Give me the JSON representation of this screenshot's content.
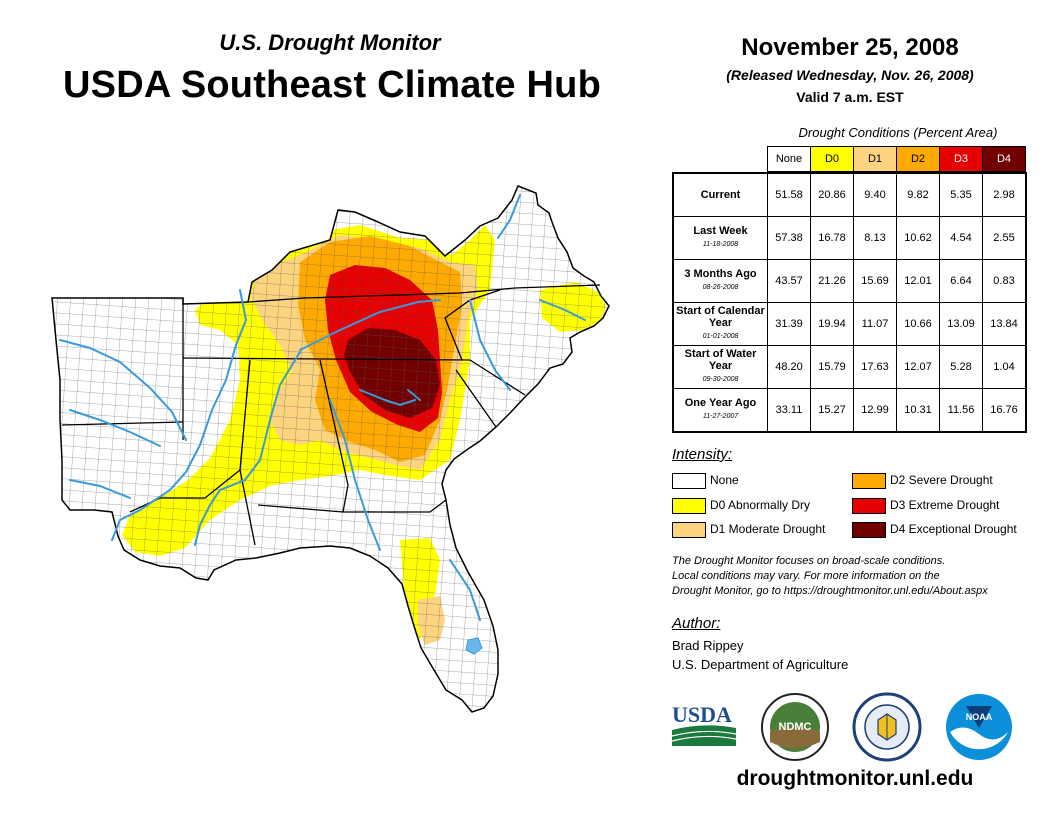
{
  "header": {
    "subtitle": "U.S. Drought Monitor",
    "title": "USDA Southeast Climate Hub",
    "date": "November 25, 2008",
    "released": "(Released Wednesday, Nov. 26, 2008)",
    "valid": "Valid 7 a.m. EST"
  },
  "table": {
    "caption": "Drought Conditions (Percent Area)",
    "columns": [
      "None",
      "D0",
      "D1",
      "D2",
      "D3",
      "D4"
    ],
    "rows": [
      {
        "label": "Current",
        "date": "",
        "values": [
          "51.58",
          "20.86",
          "9.40",
          "9.82",
          "5.35",
          "2.98"
        ]
      },
      {
        "label": "Last Week",
        "date": "11-18-2008",
        "values": [
          "57.38",
          "16.78",
          "8.13",
          "10.62",
          "4.54",
          "2.55"
        ]
      },
      {
        "label": "3 Months Ago",
        "date": "08-26-2008",
        "values": [
          "43.57",
          "21.26",
          "15.69",
          "12.01",
          "6.64",
          "0.83"
        ]
      },
      {
        "label": "Start of Calendar Year",
        "date": "01-01-2008",
        "values": [
          "31.39",
          "19.94",
          "11.07",
          "10.66",
          "13.09",
          "13.84"
        ]
      },
      {
        "label": "Start of Water Year",
        "date": "09-30-2008",
        "values": [
          "48.20",
          "15.79",
          "17.63",
          "12.07",
          "5.28",
          "1.04"
        ]
      },
      {
        "label": "One Year Ago",
        "date": "11-27-2007",
        "values": [
          "33.11",
          "15.27",
          "12.99",
          "10.31",
          "11.56",
          "16.76"
        ]
      }
    ]
  },
  "legend": {
    "title": "Intensity:",
    "items": [
      {
        "label": "None",
        "color": "#ffffff"
      },
      {
        "label": "D0 Abnormally Dry",
        "color": "#ffff00"
      },
      {
        "label": "D1 Moderate Drought",
        "color": "#fcd37f"
      },
      {
        "label": "D2 Severe Drought",
        "color": "#ffaa00"
      },
      {
        "label": "D3 Extreme Drought",
        "color": "#e60000"
      },
      {
        "label": "D4 Exceptional Drought",
        "color": "#730000"
      }
    ]
  },
  "note": {
    "line1": "The Drought Monitor focuses on broad-scale conditions.",
    "line2": "Local conditions may vary. For more information on the",
    "line3": "Drought Monitor, go to https://droughtmonitor.unl.edu/About.aspx"
  },
  "author": {
    "title": "Author:",
    "name": "Brad Rippey",
    "org": "U.S. Department of Agriculture"
  },
  "logos": {
    "usda": "USDA",
    "ndmc": "NDMC",
    "noaa": "NOAA"
  },
  "website": "droughtmonitor.unl.edu",
  "colors": {
    "river": "#3a9ad9",
    "border": "#000000"
  }
}
